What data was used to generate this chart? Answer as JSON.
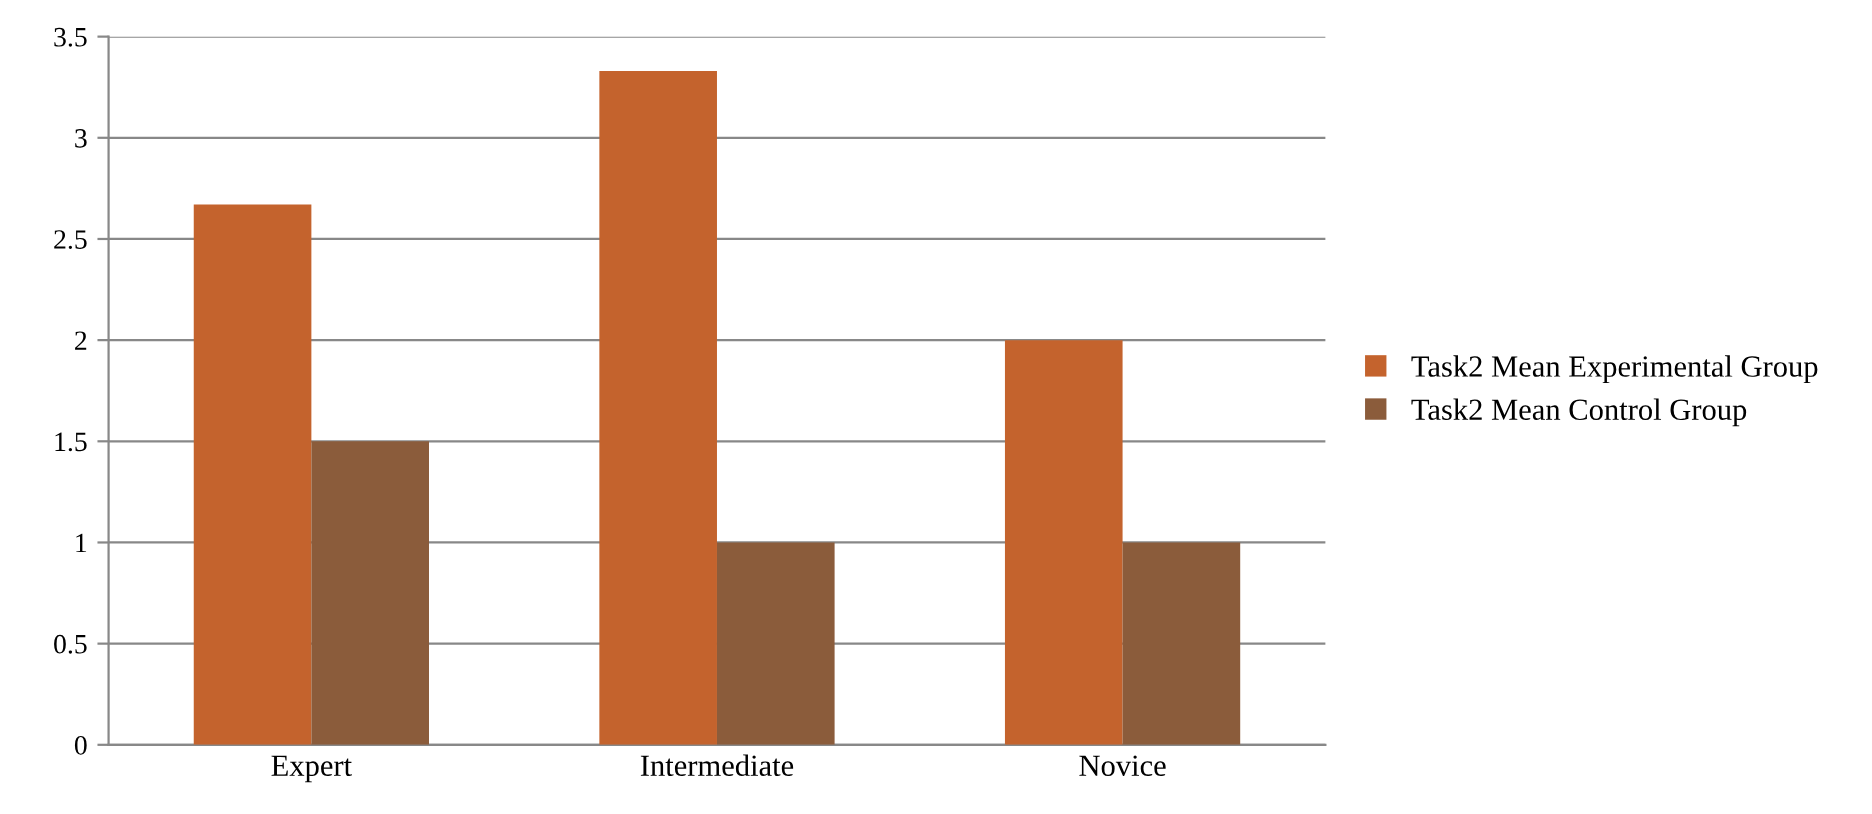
{
  "chart_data": {
    "type": "bar",
    "categories": [
      "Expert",
      "Intermediate",
      "Novice"
    ],
    "series": [
      {
        "name": "Task2 Mean Experimental Group",
        "color": "#c4632d",
        "values": [
          2.67,
          3.33,
          2
        ]
      },
      {
        "name": "Task2 Mean Control Group",
        "color": "#8b5c3b",
        "values": [
          1.5,
          1,
          1
        ]
      }
    ],
    "ylim": [
      0,
      3.5
    ],
    "yticks": [
      0,
      0.5,
      1,
      1.5,
      2,
      2.5,
      3,
      3.5
    ],
    "grid": "y",
    "legend": "right"
  }
}
